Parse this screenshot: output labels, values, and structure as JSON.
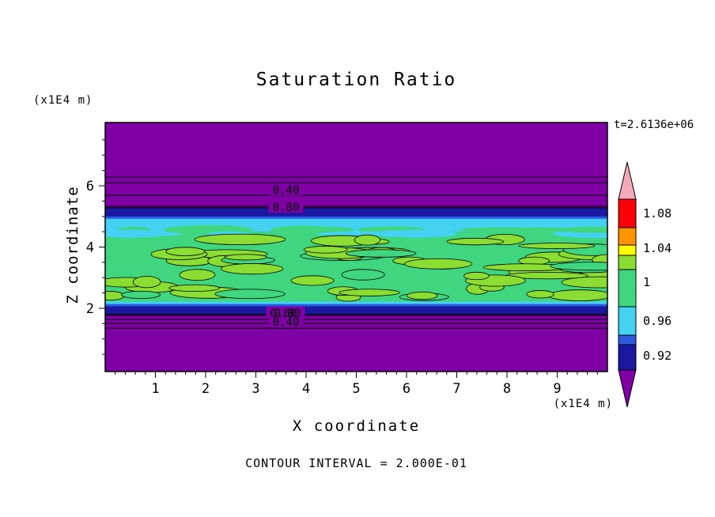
{
  "title": "Saturation Ratio",
  "annotations": {
    "time": "t=2.6136e+06",
    "y_unit": "(x1E4 m)",
    "x_unit": "(x1E4 m)",
    "footer": "CONTOUR INTERVAL = 2.000E-01"
  },
  "axes": {
    "x": {
      "label": "X coordinate",
      "unit": "(x1E4 m)",
      "major_ticks": [
        "1",
        "2",
        "3",
        "4",
        "5",
        "6",
        "7",
        "8",
        "9"
      ],
      "range": [
        0,
        10
      ]
    },
    "z": {
      "label": "Z coordinate",
      "unit": "(x1E4 m)",
      "major_ticks": [
        "2",
        "4",
        "6"
      ],
      "range": [
        0,
        8.1
      ]
    }
  },
  "colors": {
    "purple": "#7e00a5",
    "navy": "#1a18a0",
    "blue": "#2b59e0",
    "cyan": "#45d2f2",
    "green": "#3fd67f",
    "lightgreen": "#8cdd33",
    "yellow": "#ffff00",
    "orange": "#ff9400",
    "red": "#fb0007",
    "pink": "#f3a8bc",
    "contour_line": "#000000"
  },
  "colorbar": {
    "arrow_top_color": "pink",
    "arrow_bottom_color": "purple",
    "segment_colors": [
      "red",
      "orange",
      "yellow",
      "lightgreen",
      "green",
      "cyan",
      "blue",
      "navy"
    ],
    "labels": [
      "1.08",
      "1.04",
      "1",
      "0.96",
      "0.92"
    ]
  },
  "chart_data": {
    "type": "heatmap",
    "title": "Saturation Ratio",
    "xlabel": "X coordinate",
    "ylabel": "Z coordinate",
    "units": "(x1E4 m)",
    "time": "t=2.6136e+06",
    "contour_interval": "2.000E-01",
    "x_range": [
      0,
      10
    ],
    "z_range": [
      0,
      8.1
    ],
    "bands": [
      {
        "z_from": 5.28,
        "z_to": 8.1,
        "value": "< 0.92 (falls below 0.4)",
        "color_key": "purple"
      },
      {
        "z_from": 4.95,
        "z_to": 5.28,
        "value": "~0.92",
        "color_key": "navy"
      },
      {
        "z_from": 4.5,
        "z_to": 4.95,
        "value": "~0.96",
        "color_key": "cyan"
      },
      {
        "z_from": 2.22,
        "z_to": 4.5,
        "value": "~1.00 with ~1.02 patches",
        "color_key": "green"
      },
      {
        "z_from": 2.1,
        "z_to": 2.22,
        "value": "~0.96",
        "color_key": "cyan"
      },
      {
        "z_from": 1.8,
        "z_to": 2.1,
        "value": "~0.92",
        "color_key": "navy"
      },
      {
        "z_from": 0.0,
        "z_to": 1.8,
        "value": "< 0.92 (falls below 0.4)",
        "color_key": "purple"
      }
    ],
    "contour_lines_z": {
      "top": [
        6.28,
        6.1,
        5.69,
        5.33,
        5.28
      ],
      "bottom": [
        1.8,
        1.77,
        1.64,
        1.51,
        1.35
      ]
    },
    "contour_labels": [
      {
        "text": "0.40",
        "x": 3.6,
        "z": 5.87
      },
      {
        "text": "0.80",
        "x": 3.6,
        "z": 5.3
      },
      {
        "text": "0.60",
        "x": 3.55,
        "z": 1.85
      },
      {
        "text": "0.80",
        "x": 3.63,
        "z": 1.85
      },
      {
        "text": "0.40",
        "x": 3.6,
        "z": 1.56
      }
    ],
    "patches": {
      "description": "elongated lighter-green streaks (~1.02) scattered through main green band",
      "count": 60,
      "seed": 42
    }
  }
}
